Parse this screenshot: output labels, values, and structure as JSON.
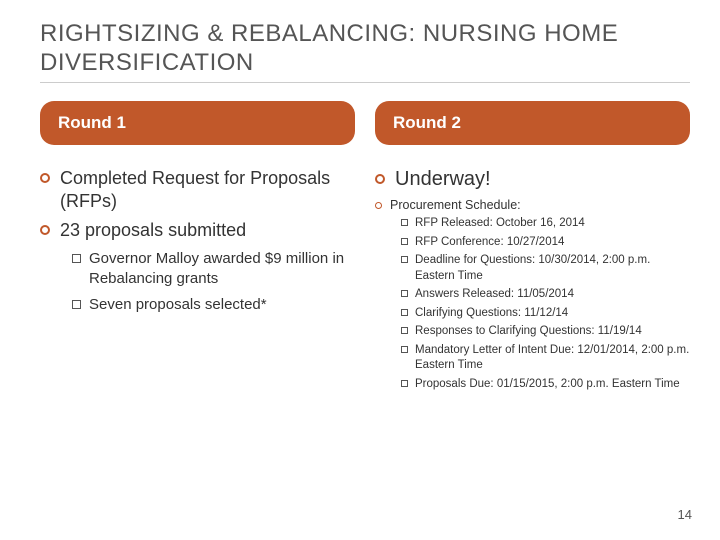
{
  "title": "Rightsizing & Rebalancing: Nursing Home Diversification",
  "pills": {
    "left": "Round 1",
    "right": "Round 2"
  },
  "left": {
    "b1": "Completed Request for Proposals (RFPs)",
    "b2": "23 proposals submitted",
    "sub1": "Governor Malloy awarded $9 million in Rebalancing grants",
    "sub2": "Seven proposals selected*"
  },
  "right": {
    "b1": "Underway!",
    "b2": "Procurement Schedule:",
    "items": {
      "i0": "RFP Released: October 16, 2014",
      "i1": "RFP Conference: 10/27/2014",
      "i2": "Deadline for Questions: 10/30/2014, 2:00 p.m. Eastern Time",
      "i3": "Answers Released: 11/05/2014",
      "i4": "Clarifying Questions: 11/12/14",
      "i5": "Responses to Clarifying Questions: 11/19/14",
      "i6": "Mandatory Letter of Intent Due: 12/01/2014, 2:00 p.m. Eastern Time",
      "i7": "Proposals Due: 01/15/2015, 2:00 p.m. Eastern Time"
    }
  },
  "page": "14",
  "colors": {
    "accent": "#c1582a",
    "text": "#333333",
    "bg": "#ffffff"
  }
}
